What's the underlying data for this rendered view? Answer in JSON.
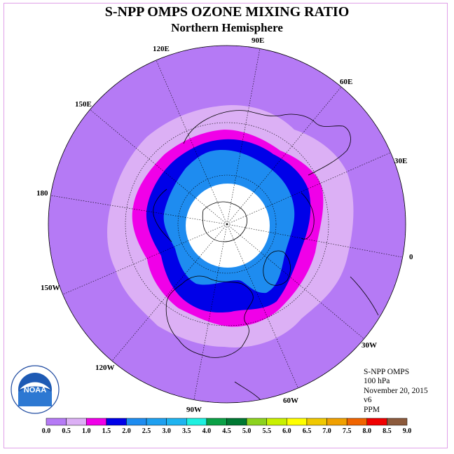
{
  "header": {
    "title": "S-NPP OMPS OZONE MIXING RATIO",
    "subtitle": "Northern Hemisphere"
  },
  "map": {
    "projection": "north polar stereographic",
    "longitude_labels": {
      "lon_120E": "120E",
      "lon_90E": "90E",
      "lon_60E": "60E",
      "lon_30E": "30E",
      "lon_0": "0",
      "lon_30W": "30W",
      "lon_60W": "60W",
      "lon_90W": "90W",
      "lon_120W": "120W",
      "lon_150W": "150W",
      "lon_180": "180",
      "lon_150E": "150E"
    },
    "colors": {
      "background_ocean": "#b57af5",
      "band_0_5_1_0": "#dcb0f5",
      "band_1_0_1_5": "#f000e8",
      "band_1_5_2_0": "#0000e8",
      "band_2_0_2_5": "#1e8cf0",
      "no_data": "#ffffff"
    }
  },
  "info": {
    "instrument": "S-NPP OMPS",
    "level": "100 hPa",
    "date": "November 20, 2015",
    "version": "v6",
    "units": "PPM"
  },
  "logo": {
    "text": "NOAA",
    "arc_text": "NATIONAL OCEANIC AND ATMOSPHERIC ADMINISTRATION",
    "bottom_text": "U.S. DEPARTMENT OF COMMERCE"
  },
  "colorbar": {
    "ticks": [
      "0.0",
      "0.5",
      "1.0",
      "1.5",
      "2.0",
      "2.5",
      "3.0",
      "3.5",
      "4.0",
      "4.5",
      "5.0",
      "5.5",
      "6.0",
      "6.5",
      "7.0",
      "7.5",
      "8.0",
      "8.5",
      "9.0"
    ],
    "colors": [
      "#b57af5",
      "#dcb0f5",
      "#f000e8",
      "#0000e8",
      "#1e8cf0",
      "#1ea0f0",
      "#1eb4f0",
      "#1ef0e0",
      "#0aa046",
      "#007832",
      "#8cd21e",
      "#c8f000",
      "#ffff00",
      "#f0c800",
      "#f0a000",
      "#f06400",
      "#f00000",
      "#8c5a3c"
    ]
  }
}
